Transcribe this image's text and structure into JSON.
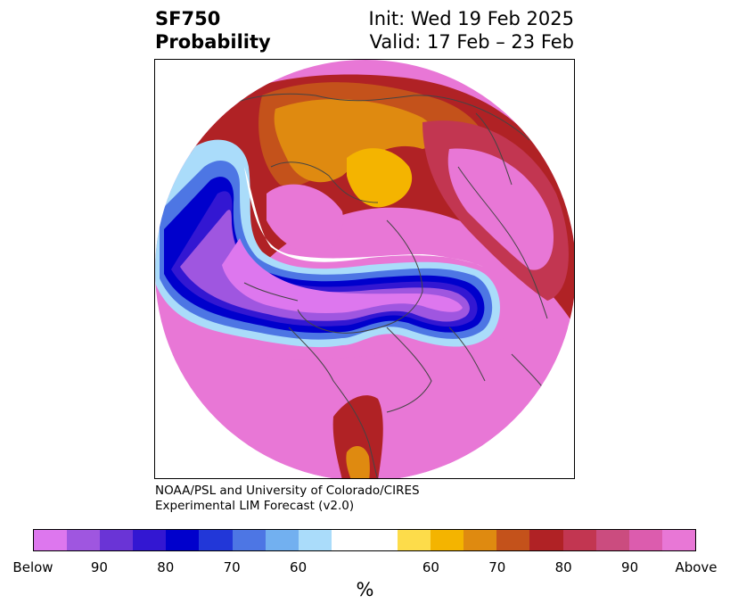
{
  "header": {
    "title_line1": "SF750",
    "title_line2": "Probability",
    "init_text": "Init: Wed 19 Feb 2025",
    "valid_text": "Valid: 17 Feb – 23 Feb"
  },
  "credit": {
    "line1": "NOAA/PSL and University of Colorado/CIRES",
    "line2": "Experimental LIM Forecast (v2.0)"
  },
  "colorbar": {
    "colors": [
      "#dd77ee",
      "#9f56e0",
      "#6a34d6",
      "#3317d2",
      "#0000cc",
      "#2237d8",
      "#4d76e4",
      "#72b0f0",
      "#aadcfa",
      "#ffffff",
      "#ffffff",
      "#fddc4a",
      "#f4b400",
      "#df8a10",
      "#c4521b",
      "#b02225",
      "#c23651",
      "#cb4c7f",
      "#dc5cae",
      "#e877d6"
    ],
    "ticks": [
      "Below",
      "90",
      "80",
      "70",
      "60",
      "60",
      "70",
      "80",
      "90",
      "Above"
    ],
    "unit": "%"
  },
  "map": {
    "colors": {
      "below_strong": "#dd77ee",
      "below_90": "#9f56e0",
      "below_70": "#3317d2",
      "below_60": "#0000cc",
      "below_50": "#4d76e4",
      "below_40": "#aadcfa",
      "neutral": "#ffffff",
      "above_40": "#fddc4a",
      "above_50": "#f4b400",
      "above_60": "#df8a10",
      "above_70": "#c4521b",
      "above_80": "#b02225",
      "above_90": "#c23651",
      "above_strong": "#e877d6",
      "coast": "#444444"
    }
  }
}
